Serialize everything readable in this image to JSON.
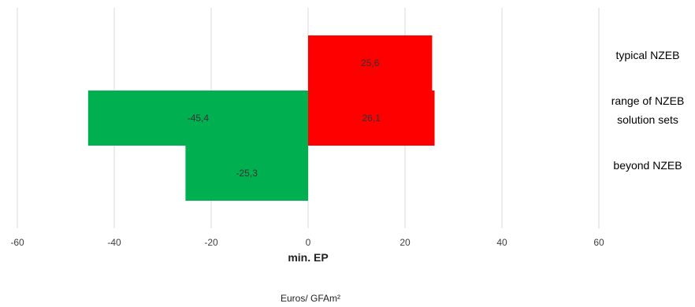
{
  "chart_data": {
    "type": "bar",
    "orientation": "horizontal",
    "stacked": true,
    "categories": [
      "typical NZEB",
      "range of NZEB\nsolution sets",
      "beyond NZEB"
    ],
    "series": [
      {
        "color": "#00B050",
        "values": [
          null,
          -45.4,
          -25.3
        ],
        "labels": [
          "",
          "-45,4",
          "-25,3"
        ]
      },
      {
        "color": "#FF0000",
        "values": [
          25.6,
          26.1,
          null
        ],
        "labels": [
          "25,6",
          "26,1",
          ""
        ]
      }
    ],
    "xlabel": "min. EP",
    "units_label": "Euros/ GFAm²",
    "xlim": [
      -60,
      60
    ],
    "xticks": [
      -60,
      -40,
      -20,
      0,
      20,
      40,
      60
    ],
    "xtick_labels": [
      "-60",
      "-40",
      "-20",
      "0",
      "20",
      "40",
      "60"
    ],
    "grid": "vertical",
    "legend": "none"
  }
}
